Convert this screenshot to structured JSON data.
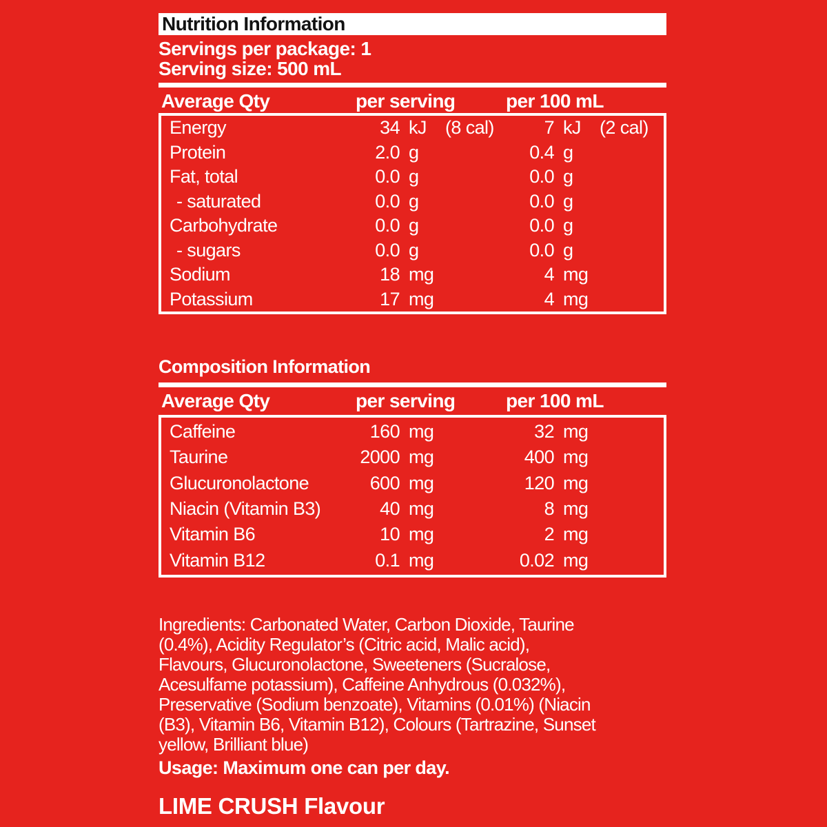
{
  "colors": {
    "background": "#e6231e",
    "text_white": "#ffffff",
    "text_black": "#121212",
    "panel_white": "#ffffff"
  },
  "header": {
    "title": "Nutrition Information",
    "servings_line": "Servings per package: 1",
    "serving_size_line": "Serving size: 500 mL"
  },
  "nutrition_table": {
    "columns": [
      "Average Qty",
      "per serving",
      "per 100 mL"
    ],
    "rows": [
      {
        "label": "Energy",
        "serving_value": "34",
        "serving_unit": "kJ",
        "serving_extra": "(8 cal)",
        "per100_value": "7",
        "per100_unit": "kJ",
        "per100_extra": "(2 cal)"
      },
      {
        "label": "Protein",
        "serving_value": "2.0",
        "serving_unit": "g",
        "serving_extra": "",
        "per100_value": "0.4",
        "per100_unit": "g",
        "per100_extra": ""
      },
      {
        "label": "Fat, total",
        "serving_value": "0.0",
        "serving_unit": "g",
        "serving_extra": "",
        "per100_value": "0.0",
        "per100_unit": "g",
        "per100_extra": ""
      },
      {
        "label": "- saturated",
        "indent": true,
        "serving_value": "0.0",
        "serving_unit": "g",
        "serving_extra": "",
        "per100_value": "0.0",
        "per100_unit": "g",
        "per100_extra": ""
      },
      {
        "label": "Carbohydrate",
        "serving_value": "0.0",
        "serving_unit": "g",
        "serving_extra": "",
        "per100_value": "0.0",
        "per100_unit": "g",
        "per100_extra": ""
      },
      {
        "label": "- sugars",
        "indent": true,
        "serving_value": "0.0",
        "serving_unit": "g",
        "serving_extra": "",
        "per100_value": "0.0",
        "per100_unit": "g",
        "per100_extra": ""
      },
      {
        "label": "Sodium",
        "serving_value": "18",
        "serving_unit": "mg",
        "serving_extra": "",
        "per100_value": "4",
        "per100_unit": "mg",
        "per100_extra": ""
      },
      {
        "label": "Potassium",
        "serving_value": "17",
        "serving_unit": "mg",
        "serving_extra": "",
        "per100_value": "4",
        "per100_unit": "mg",
        "per100_extra": ""
      }
    ]
  },
  "composition_table": {
    "title": "Composition Information",
    "columns": [
      "Average Qty",
      "per serving",
      "per 100 mL"
    ],
    "rows": [
      {
        "label": "Caffeine",
        "serving_value": "160",
        "serving_unit": "mg",
        "serving_extra": "",
        "per100_value": "32",
        "per100_unit": "mg",
        "per100_extra": ""
      },
      {
        "label": "Taurine",
        "serving_value": "2000",
        "serving_unit": "mg",
        "serving_extra": "",
        "per100_value": "400",
        "per100_unit": "mg",
        "per100_extra": ""
      },
      {
        "label": "Glucuronolactone",
        "serving_value": "600",
        "serving_unit": "mg",
        "serving_extra": "",
        "per100_value": "120",
        "per100_unit": "mg",
        "per100_extra": ""
      },
      {
        "label": "Niacin (Vitamin B3)",
        "serving_value": "40",
        "serving_unit": "mg",
        "serving_extra": "",
        "per100_value": "8",
        "per100_unit": "mg",
        "per100_extra": ""
      },
      {
        "label": "Vitamin B6",
        "serving_value": "10",
        "serving_unit": "mg",
        "serving_extra": "",
        "per100_value": "2",
        "per100_unit": "mg",
        "per100_extra": ""
      },
      {
        "label": "Vitamin B12",
        "serving_value": "0.1",
        "serving_unit": "mg",
        "serving_extra": "",
        "per100_value": "0.02",
        "per100_unit": "mg",
        "per100_extra": ""
      }
    ]
  },
  "ingredients": {
    "lines": [
      "Ingredients: Carbonated Water, Carbon Dioxide, Taurine",
      "(0.4%), Acidity Regulator’s (Citric acid, Malic acid),",
      "Flavours, Glucuronolactone, Sweeteners (Sucralose,",
      "Acesulfame potassium), Caffeine Anhydrous (0.032%),",
      "Preservative (Sodium benzoate), Vitamins (0.01%) (Niacin",
      "(B3), Vitamin B6, Vitamin B12), Colours (Tartrazine, Sunset",
      "yellow, Brilliant blue)"
    ]
  },
  "usage_line": "Usage: Maximum one can per day.",
  "flavour_line": "LIME CRUSH Flavour"
}
